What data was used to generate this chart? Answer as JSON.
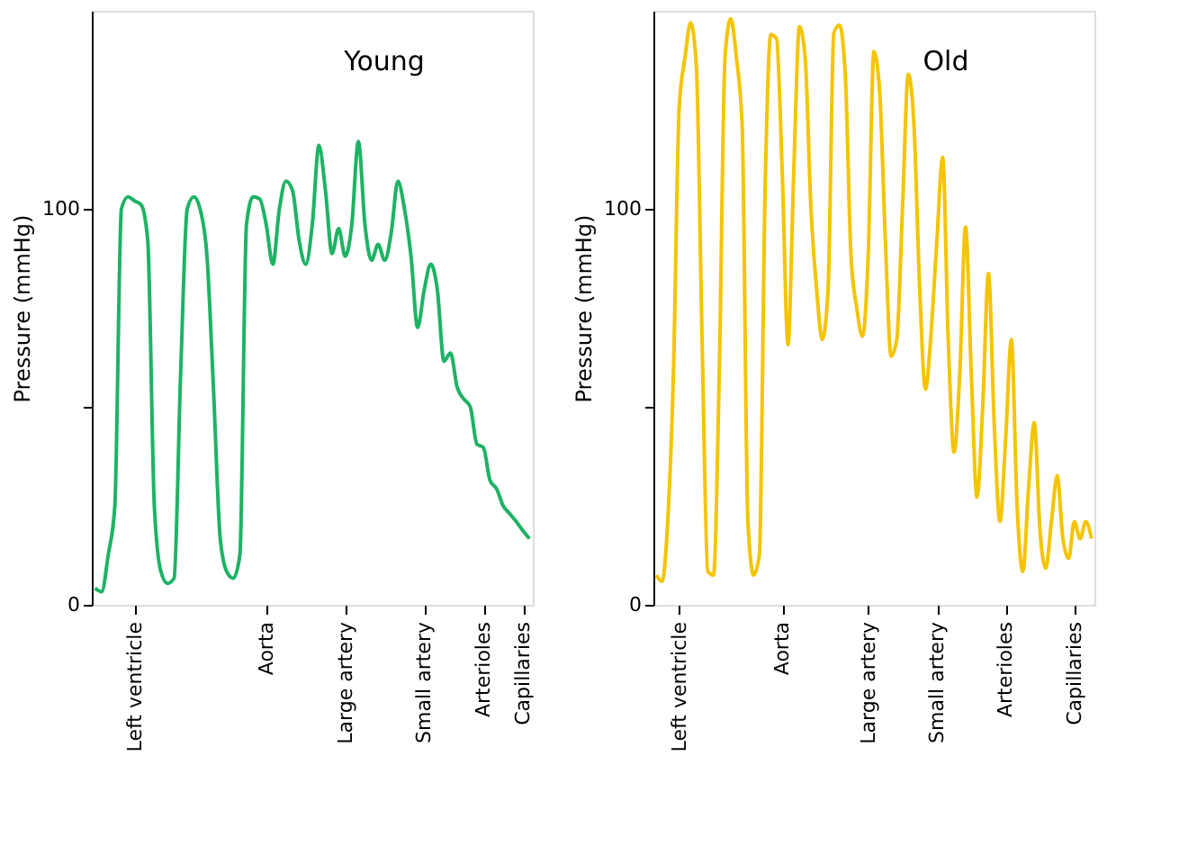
{
  "chart_data": [
    {
      "type": "line",
      "title": "Young",
      "ylabel": "Pressure (mmHg)",
      "ylim": [
        0,
        150
      ],
      "categories": [
        null,
        null,
        null,
        null,
        null,
        null,
        "Left ventricle",
        null,
        null,
        null,
        null,
        null,
        null,
        null,
        null,
        null,
        null,
        null,
        null,
        null,
        null,
        null,
        null,
        null,
        null,
        null,
        "Aorta",
        null,
        null,
        null,
        null,
        null,
        null,
        null,
        null,
        null,
        null,
        null,
        "Large artery",
        null,
        null,
        null,
        null,
        null,
        null,
        null,
        null,
        null,
        null,
        null,
        "Small artery",
        null,
        null,
        null,
        null,
        null,
        null,
        null,
        null,
        "Arterioles",
        null,
        null,
        null,
        null,
        null,
        "Capillaries",
        null
      ],
      "yticks": [
        0,
        {
          "value": 50,
          "label": null
        },
        100
      ],
      "grid": false,
      "marker": "none",
      "line_style": "solid",
      "series": [
        {
          "color": "#1db364",
          "values": [
            4.2,
            3.3,
            12.6,
            25,
            100,
            103,
            102,
            101,
            92,
            25,
            8.4,
            5.4,
            6.7,
            58.6,
            100,
            103,
            99.6,
            88,
            54,
            17,
            8.4,
            6.7,
            12.6,
            96,
            103,
            102.5,
            96,
            86,
            100,
            107,
            104.6,
            92,
            86,
            96,
            116,
            104.6,
            88.7,
            95,
            88,
            96,
            117,
            96,
            87,
            91,
            87,
            94,
            107,
            100,
            88,
            70,
            79.5,
            86,
            79.5,
            61.5,
            63.6,
            55,
            52,
            50,
            40.6,
            39.7,
            31.4,
            29.3,
            25,
            23,
            21,
            18.7,
            16.7
          ]
        }
      ]
    },
    {
      "type": "line",
      "title": "Old",
      "ylabel": "Pressure (mmHg)",
      "ylim": [
        0,
        150
      ],
      "categories": [
        null,
        null,
        null,
        null,
        "Left ventricle",
        null,
        null,
        null,
        null,
        null,
        null,
        null,
        null,
        null,
        null,
        null,
        null,
        null,
        null,
        null,
        null,
        null,
        "Aorta",
        null,
        null,
        null,
        null,
        null,
        null,
        null,
        null,
        null,
        null,
        null,
        null,
        null,
        null,
        "Large artery",
        null,
        null,
        null,
        null,
        null,
        null,
        null,
        null,
        null,
        null,
        null,
        "Small artery",
        null,
        null,
        null,
        null,
        null,
        null,
        null,
        null,
        null,
        null,
        null,
        "Arterioles",
        null,
        null,
        null,
        null,
        null,
        null,
        null,
        null,
        null,
        null,
        null,
        "Capillaries",
        null,
        null,
        null
      ],
      "yticks": [
        0,
        {
          "value": 50,
          "label": null
        },
        100
      ],
      "grid": false,
      "marker": "none",
      "line_style": "solid",
      "series": [
        {
          "color": "#f5c400",
          "values": [
            7.5,
            5.9,
            21,
            58.6,
            125.5,
            138,
            147,
            136,
            67,
            8.4,
            7.5,
            58.6,
            138,
            148,
            138,
            121,
            21,
            7.5,
            12.6,
            104.6,
            144,
            143,
            109,
            65.7,
            109,
            146,
            138,
            100.4,
            79.5,
            67,
            79.5,
            144.4,
            146.4,
            134,
            88,
            75,
            67.8,
            88,
            139.7,
            129.7,
            92,
            62.8,
            67,
            100.4,
            134,
            121,
            79.5,
            54.4,
            69,
            92,
            113,
            66,
            38.5,
            58.6,
            95.4,
            58.6,
            27.2,
            50,
            83.7,
            46,
            21,
            41.8,
            67,
            25,
            8.4,
            29.3,
            46,
            18.8,
            9.2,
            21,
            32.6,
            16.7,
            11.7,
            21,
            16.7,
            21,
            16.7
          ]
        }
      ]
    }
  ]
}
